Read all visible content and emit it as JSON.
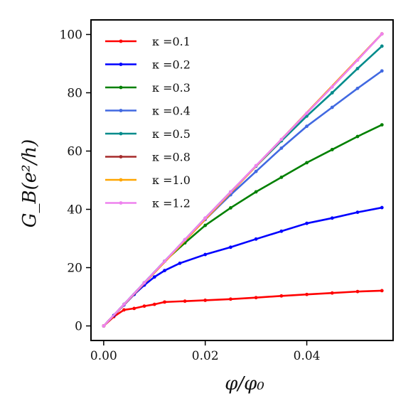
{
  "chart_data": {
    "type": "line",
    "xlabel": "φ/φ₀",
    "ylabel": "G_B(e²/h)",
    "xlim": [
      -0.0025,
      0.057
    ],
    "ylim": [
      -5,
      105
    ],
    "xticks": [
      0.0,
      0.02,
      0.04
    ],
    "xtick_labels": [
      "0.00",
      "0.02",
      "0.04"
    ],
    "yticks": [
      0,
      20,
      40,
      60,
      80,
      100
    ],
    "ytick_labels": [
      "0",
      "20",
      "40",
      "60",
      "80",
      "100"
    ],
    "grid": false,
    "legend_position": "top-left",
    "series": [
      {
        "name": "κ =0.1",
        "color": "#ff0000",
        "x": [
          0.0,
          0.002,
          0.004,
          0.006,
          0.008,
          0.01,
          0.012,
          0.016,
          0.02,
          0.025,
          0.03,
          0.035,
          0.04,
          0.045,
          0.05,
          0.0548
        ],
        "y": [
          0,
          3.2,
          5.5,
          6.0,
          6.8,
          7.4,
          8.2,
          8.5,
          8.8,
          9.2,
          9.7,
          10.3,
          10.8,
          11.3,
          11.8,
          12.1
        ]
      },
      {
        "name": "κ =0.2",
        "color": "#0000ff",
        "x": [
          0.0,
          0.002,
          0.004,
          0.006,
          0.008,
          0.01,
          0.012,
          0.015,
          0.02,
          0.025,
          0.03,
          0.035,
          0.04,
          0.045,
          0.05,
          0.0548
        ],
        "y": [
          0,
          3.6,
          7.2,
          10.8,
          14.0,
          16.8,
          19.0,
          21.5,
          24.5,
          27.0,
          29.8,
          32.5,
          35.2,
          37.0,
          39.0,
          40.6
        ]
      },
      {
        "name": "κ =0.3",
        "color": "#008000",
        "x": [
          0.0,
          0.004,
          0.008,
          0.012,
          0.016,
          0.02,
          0.025,
          0.03,
          0.035,
          0.04,
          0.045,
          0.05,
          0.0548
        ],
        "y": [
          0,
          7.4,
          14.8,
          22.2,
          28.5,
          34.5,
          40.5,
          46.0,
          51.0,
          56.0,
          60.5,
          65.0,
          69.0
        ]
      },
      {
        "name": "κ =0.4",
        "color": "#4169e1",
        "x": [
          0.0,
          0.004,
          0.008,
          0.012,
          0.016,
          0.02,
          0.025,
          0.03,
          0.035,
          0.04,
          0.045,
          0.05,
          0.0548
        ],
        "y": [
          0,
          7.4,
          14.8,
          22.2,
          29.5,
          36.5,
          45.0,
          53.0,
          61.0,
          68.5,
          75.0,
          81.5,
          87.5
        ]
      },
      {
        "name": "κ =0.5",
        "color": "#008b8b",
        "x": [
          0.0,
          0.004,
          0.008,
          0.012,
          0.016,
          0.02,
          0.025,
          0.03,
          0.035,
          0.04,
          0.045,
          0.05,
          0.0548
        ],
        "y": [
          0,
          7.4,
          14.8,
          22.2,
          29.6,
          37.0,
          46.0,
          54.8,
          63.5,
          72.0,
          80.0,
          88.3,
          96.0
        ]
      },
      {
        "name": "κ =0.8",
        "color": "#a52a2a",
        "x": [
          0.0,
          0.0548
        ],
        "y": [
          0,
          100.2
        ]
      },
      {
        "name": "κ =1.0",
        "color": "#ffa500",
        "x": [
          0.0,
          0.0548
        ],
        "y": [
          0,
          100.2
        ]
      },
      {
        "name": "κ =1.2",
        "color": "#ee82ee",
        "x": [
          0.0,
          0.004,
          0.008,
          0.012,
          0.016,
          0.02,
          0.025,
          0.03,
          0.035,
          0.04,
          0.045,
          0.05,
          0.0548
        ],
        "y": [
          0,
          7.4,
          14.8,
          22.2,
          29.6,
          37.0,
          46.0,
          55.0,
          64.0,
          73.0,
          82.0,
          91.2,
          100.2
        ]
      }
    ]
  }
}
